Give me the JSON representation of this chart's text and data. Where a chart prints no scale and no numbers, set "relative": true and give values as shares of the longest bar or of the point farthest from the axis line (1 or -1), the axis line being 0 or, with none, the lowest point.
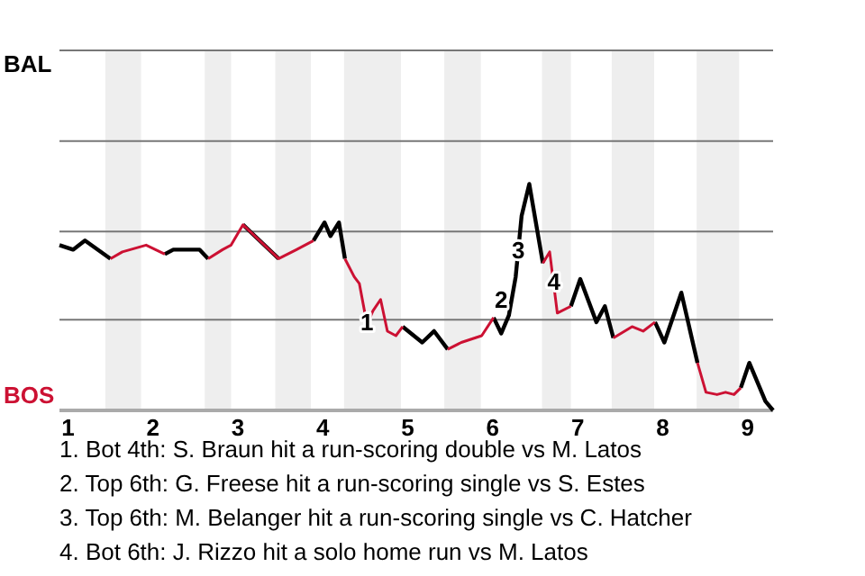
{
  "chart_data": {
    "type": "line",
    "relative": true,
    "x": [
      0.9,
      1.06,
      1.2,
      1.5,
      1.64,
      1.92,
      2.14,
      2.24,
      2.55,
      2.65,
      2.82,
      2.92,
      3.06,
      3.48,
      3.69,
      3.89,
      4.02,
      4.09,
      4.19,
      4.26,
      4.37,
      4.43,
      4.52,
      4.59,
      4.68,
      4.76,
      4.86,
      4.94,
      5.17,
      5.31,
      5.47,
      5.63,
      5.87,
      6.01,
      6.1,
      6.19,
      6.27,
      6.34,
      6.43,
      6.59,
      6.67,
      6.76,
      6.92,
      7.03,
      7.22,
      7.32,
      7.42,
      7.64,
      7.77,
      7.91,
      8.02,
      8.22,
      8.41,
      8.51,
      8.64,
      8.74,
      8.84,
      8.92,
      9.02,
      9.21,
      9.3
    ],
    "series": [
      {
        "name": "BAL",
        "color": "#000000",
        "values": [
          0.73,
          0.71,
          0.75,
          0.67,
          null,
          null,
          0.69,
          0.71,
          0.71,
          0.67,
          null,
          null,
          0.82,
          0.67,
          null,
          0.75,
          0.83,
          0.77,
          0.83,
          0.67,
          null,
          null,
          null,
          null,
          null,
          null,
          null,
          0.37,
          0.3,
          0.35,
          0.27,
          null,
          null,
          0.41,
          0.34,
          0.42,
          0.59,
          0.86,
          1,
          0.65,
          null,
          null,
          0.46,
          0.58,
          0.39,
          0.46,
          0.32,
          null,
          null,
          0.39,
          0.3,
          0.52,
          0.21,
          null,
          null,
          null,
          null,
          0.1,
          0.21,
          0.04,
          0
        ]
      },
      {
        "name": "BOS",
        "color": "#cc1133",
        "values": [
          null,
          null,
          null,
          0.67,
          0.7,
          0.73,
          0.69,
          null,
          null,
          0.67,
          0.71,
          0.73,
          0.82,
          0.67,
          0.71,
          0.75,
          null,
          null,
          null,
          0.67,
          0.59,
          0.56,
          0.38,
          0.44,
          0.49,
          0.35,
          0.33,
          0.37,
          null,
          null,
          0.27,
          0.3,
          0.33,
          0.41,
          null,
          null,
          null,
          null,
          null,
          0.65,
          0.7,
          0.43,
          0.46,
          null,
          null,
          null,
          0.32,
          0.37,
          0.35,
          0.39,
          null,
          null,
          0.21,
          0.08,
          0.07,
          0.08,
          0.07,
          0.1,
          null,
          null,
          null
        ]
      }
    ],
    "xlim": [
      0.9,
      9.3
    ],
    "xticks": [
      1,
      2,
      3,
      4,
      5,
      6,
      7,
      8,
      9
    ],
    "ref_lines": [
      {
        "axis": "y",
        "value": 0.4,
        "color": "#777777"
      },
      {
        "axis": "y",
        "value": 0.79,
        "color": "#777777"
      },
      {
        "axis": "y",
        "value": 1.19,
        "color": "#777777"
      },
      {
        "axis": "y",
        "value": 1.59,
        "color": "#777777"
      }
    ],
    "legend": "left",
    "bands": [
      {
        "axis": "x",
        "from": 1.44,
        "to": 1.86,
        "color": "#eeeeee"
      },
      {
        "axis": "x",
        "from": 2.61,
        "to": 2.92,
        "color": "#eeeeee"
      },
      {
        "axis": "x",
        "from": 3.44,
        "to": 3.86,
        "color": "#eeeeee"
      },
      {
        "axis": "x",
        "from": 4.25,
        "to": 4.92,
        "color": "#eeeeee"
      },
      {
        "axis": "x",
        "from": 5.43,
        "to": 5.86,
        "color": "#eeeeee"
      },
      {
        "axis": "x",
        "from": 6.58,
        "to": 6.92,
        "color": "#eeeeee"
      },
      {
        "axis": "x",
        "from": 7.4,
        "to": 7.9,
        "color": "#eeeeee"
      },
      {
        "axis": "x",
        "from": 8.4,
        "to": 8.9,
        "color": "#eeeeee"
      }
    ],
    "annotations": [
      {
        "text": "1",
        "x": 4.52,
        "y": 0.38
      },
      {
        "text": "2",
        "x": 6.1,
        "y": 0.48
      },
      {
        "text": "3",
        "x": 6.3,
        "y": 0.7
      },
      {
        "text": "4",
        "x": 6.72,
        "y": 0.56
      },
      "1. Bot 4th: S. Braun hit a run-scoring double vs M. Latos",
      "2. Top 6th: G. Freese hit a run-scoring single vs S. Estes",
      "3. Top 6th: M. Belanger hit a run-scoring single vs C. Hatcher",
      "4. Bot 6th: J. Rizzo hit a solo home run vs M. Latos"
    ]
  }
}
